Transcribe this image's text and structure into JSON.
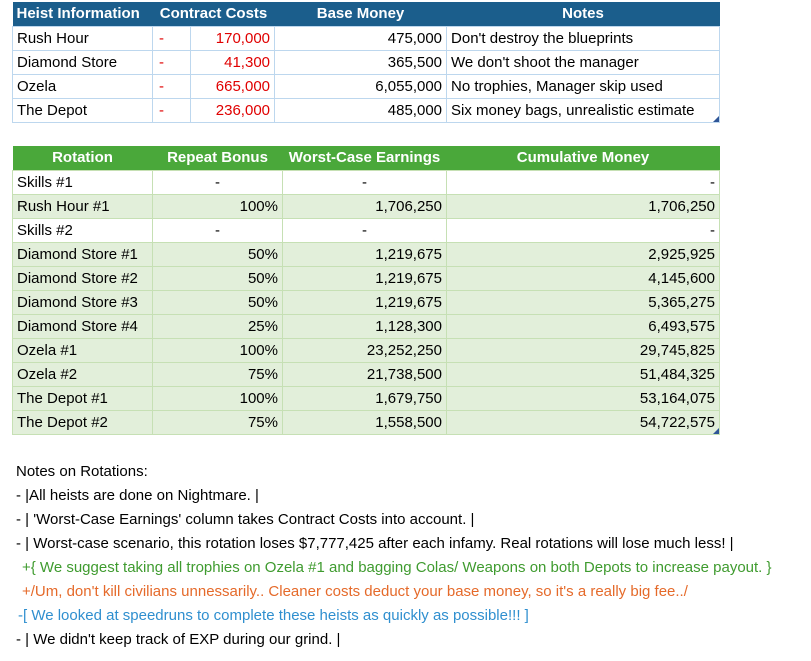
{
  "heist_table": {
    "headers": [
      "Heist Information",
      "Contract Costs",
      "Base Money",
      "Notes"
    ],
    "rows": [
      {
        "name": "Rush Hour",
        "dash": "-",
        "cost": "170,000",
        "base": "475,000",
        "note": "Don't destroy the blueprints"
      },
      {
        "name": "Diamond Store",
        "dash": "-",
        "cost": "41,300",
        "base": "365,500",
        "note": "We don't shoot the manager"
      },
      {
        "name": "Ozela",
        "dash": "-",
        "cost": "665,000",
        "base": "6,055,000",
        "note": "No trophies, Manager skip used"
      },
      {
        "name": "The Depot",
        "dash": "-",
        "cost": "236,000",
        "base": "485,000",
        "note": "Six money bags, unrealistic estimate"
      }
    ]
  },
  "rotation_table": {
    "headers": [
      "Rotation",
      "Repeat Bonus",
      "Worst-Case Earnings",
      "Cumulative Money"
    ],
    "rows": [
      {
        "rotation": "Skills #1",
        "bonus": "-",
        "earnings": "-",
        "cumulative": "-"
      },
      {
        "rotation": "Rush Hour #1",
        "bonus": "100%",
        "earnings": "1,706,250",
        "cumulative": "1,706,250"
      },
      {
        "rotation": "Skills #2",
        "bonus": "-",
        "earnings": "-",
        "cumulative": "-"
      },
      {
        "rotation": "Diamond Store #1",
        "bonus": "50%",
        "earnings": "1,219,675",
        "cumulative": "2,925,925"
      },
      {
        "rotation": "Diamond Store #2",
        "bonus": "50%",
        "earnings": "1,219,675",
        "cumulative": "4,145,600"
      },
      {
        "rotation": "Diamond Store #3",
        "bonus": "50%",
        "earnings": "1,219,675",
        "cumulative": "5,365,275"
      },
      {
        "rotation": "Diamond Store #4",
        "bonus": "25%",
        "earnings": "1,128,300",
        "cumulative": "6,493,575"
      },
      {
        "rotation": "Ozela #1",
        "bonus": "100%",
        "earnings": "23,252,250",
        "cumulative": "29,745,825"
      },
      {
        "rotation": "Ozela #2",
        "bonus": "75%",
        "earnings": "21,738,500",
        "cumulative": "51,484,325"
      },
      {
        "rotation": "The Depot #1",
        "bonus": "100%",
        "earnings": "1,679,750",
        "cumulative": "53,164,075"
      },
      {
        "rotation": "The Depot #2",
        "bonus": "75%",
        "earnings": "1,558,500",
        "cumulative": "54,722,575"
      }
    ]
  },
  "notes": {
    "title": "Notes on Rotations:",
    "lines": [
      {
        "text": "- |All heists are done on Nightmare. |",
        "style": "plain"
      },
      {
        "text": "- | 'Worst-Case Earnings' column takes Contract Costs into account. |",
        "style": "plain"
      },
      {
        "text": "- | Worst-case scenario, this rotation loses $7,777,425 after each infamy. Real rotations will lose much less! |",
        "style": "plain"
      },
      {
        "text": "+{ We suggest taking all trophies on Ozela #1 and bagging Colas/ Weapons on both Depots to increase payout. }",
        "style": "green"
      },
      {
        "text": "+/Um, don't kill civilians unnessarily.. Cleaner costs deduct your base money, so it's a really big fee../",
        "style": "orange"
      },
      {
        "text": "-[ We looked at speedruns to complete these heists as quickly as possible!!! ]",
        "style": "blue"
      },
      {
        "text": "- | We didn't keep track of EXP during our grind. |",
        "style": "plain"
      }
    ]
  }
}
